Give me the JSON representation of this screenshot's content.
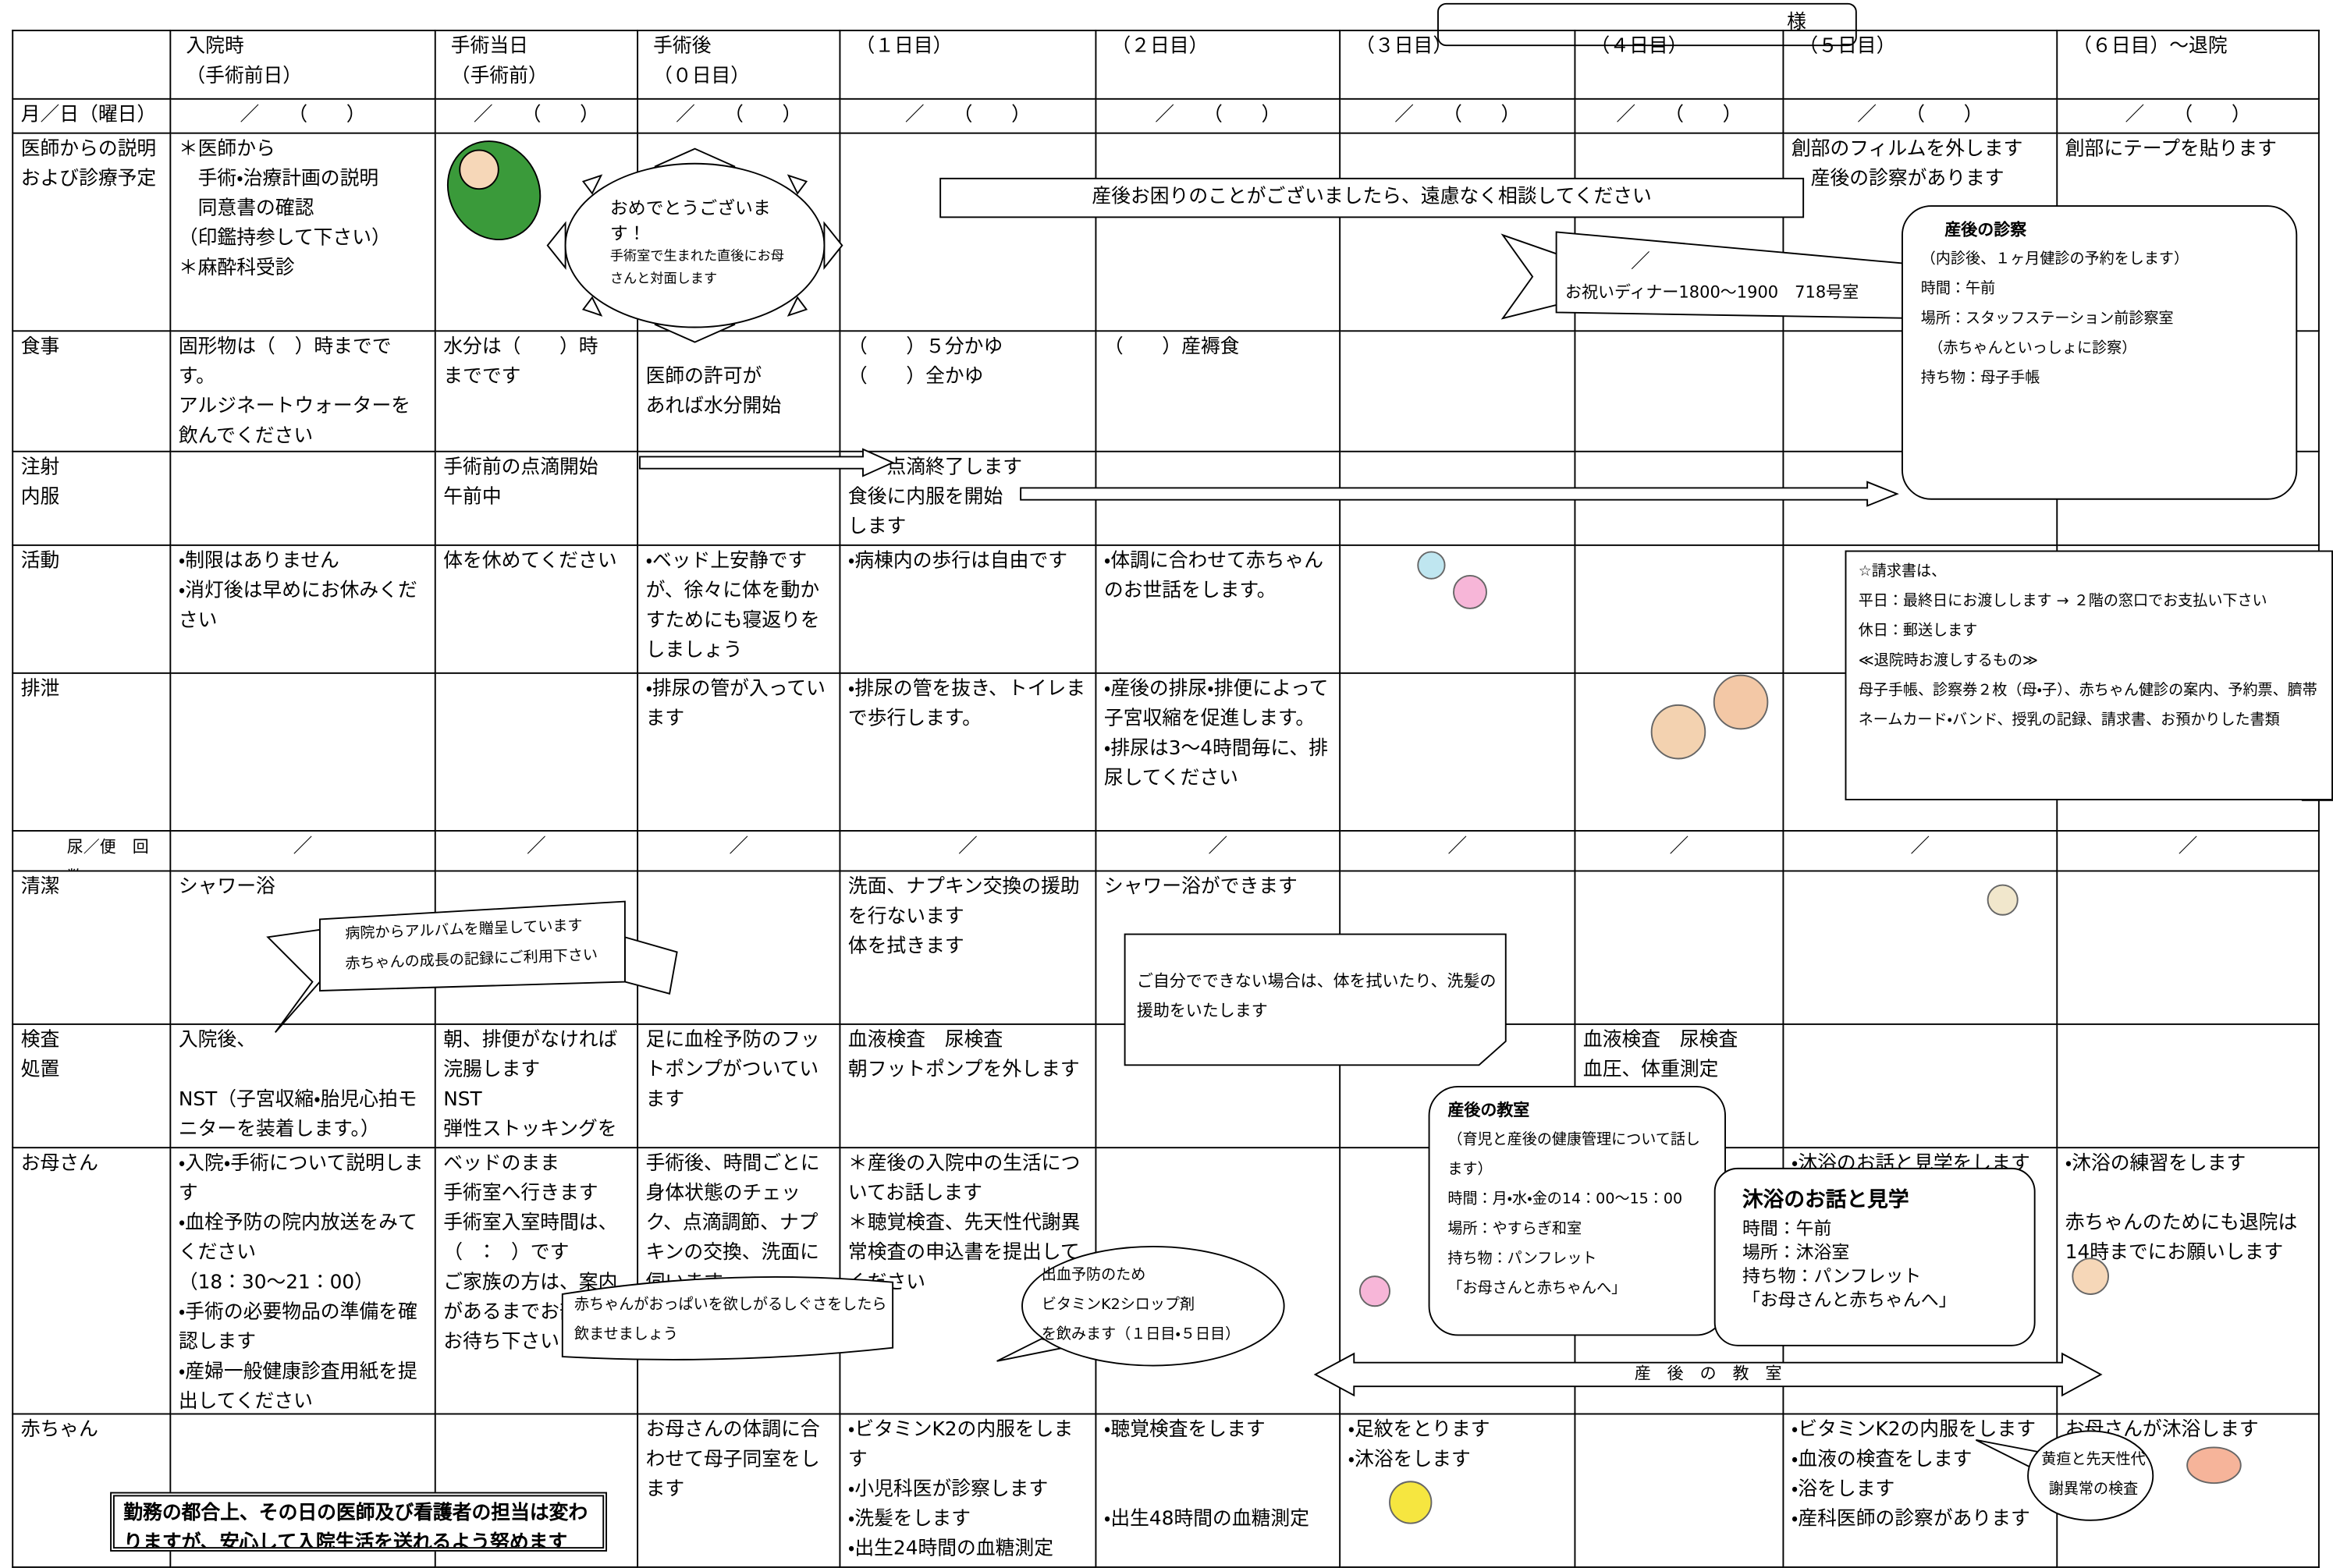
{
  "patient_label": "様",
  "columns": [
    "入院時\n（手術前日）",
    "手術当日\n（手術前）",
    "手術後\n（０日目）",
    "（１日目）",
    "（２日目）",
    "（３日目）",
    "（４日目）",
    "（５日目）",
    "（６日目）～退院"
  ],
  "rows": [
    {
      "label": "月／日（曜日）",
      "cells": [
        "／　　（　　）",
        "／　　（　　）",
        "／　　（　　）",
        "／　　（　　）",
        "／　　（　　）",
        "／　　（　　）",
        "／　　（　　）",
        "／　　（　　）",
        "／　　（　　）"
      ]
    },
    {
      "label": "医師からの説明\nおよび診療予定",
      "cells": [
        "＊医師から\n　手術・治療計画の説明\n　同意書の確認\n（印鑑持参して下さい）\n＊麻酔科受診",
        null,
        null,
        null,
        null,
        null,
        null,
        "創部のフィルムを外します\n　産後の診察があります",
        "創部にテープを貼ります"
      ]
    },
    {
      "label": "食事",
      "cells": [
        "固形物は（　）時までです。\nアルジネートウォーターを飲んでください",
        "水分は（　　）時\nまでです",
        "\n医師の許可が\nあれば水分開始",
        "（　　）５分かゆ\n（　　）全かゆ",
        "（　　）産褥食",
        null,
        null,
        null,
        null
      ]
    },
    {
      "label": "注射\n内服",
      "cells": [
        null,
        "手術前の点滴開始\n午前中",
        null,
        "　　点滴終了します\n食後に内服を開始\nします",
        null,
        null,
        null,
        null,
        null
      ]
    },
    {
      "label": "活動",
      "cells": [
        "・制限はありません\n・消灯後は早めにお休みください",
        "体を休めてください",
        "・ベッド上安静ですが、徐々に体を動かすためにも寝返りをしましょう",
        "・病棟内の歩行は自由です",
        "・体調に合わせて赤ちゃんのお世話をします。",
        null,
        null,
        null,
        null
      ]
    },
    {
      "label": "排泄",
      "cells": [
        null,
        null,
        "・排尿の管が入っています",
        "・排尿の管を抜き、トイレまで歩行します。",
        "・産後の排尿・排便によって子宮収縮を促進します。\n・排尿は3～4時間毎に、排尿してください",
        null,
        null,
        null,
        null
      ]
    },
    {
      "label": "尿／便　回数",
      "cells": [
        "／",
        "／",
        "／",
        "／",
        "／",
        "／",
        "／",
        "／",
        "／"
      ]
    },
    {
      "label": "清潔",
      "cells": [
        "シャワー浴",
        null,
        null,
        "洗面、ナプキン交換の援助を行ないます\n体を拭きます",
        "シャワー浴ができます",
        null,
        null,
        null,
        null
      ]
    },
    {
      "label": "検査\n処置",
      "cells": [
        "入院後、\n\nNST（子宮収縮・胎児心拍モニターを装着します。）",
        "朝、排便がなければ浣腸します\nNST\n弾性ストッキングをはきます",
        "足に血栓予防のフットポンプがついています",
        "血液検査　尿検査\n朝フットポンプを外します",
        null,
        null,
        "血液検査　尿検査\n血圧、体重測定",
        null,
        null
      ]
    },
    {
      "label": "お母さん",
      "cells": [
        "・入院・手術について説明します\n・血栓予防の院内放送をみてください\n（18：30～21：00）\n・手術の必要物品の準備を確認します\n・産婦一般健康診査用紙を提出してください",
        "ベッドのまま\n手術室へ行きます\n手術室入室時間は、\n（　：　）です\nご家族の方は、案内があるまでお部屋でお待ち下さい",
        "手術後、時間ごとに身体状態のチェック、点滴調節、ナプキンの交換、洗面に伺います",
        "＊産後の入院中の生活についてお話します\n＊聴覚検査、先天性代謝異常検査の申込書を提出してください",
        null,
        null,
        null,
        "・沐浴のお話と見学をします",
        "・沐浴の練習をします\n\n赤ちゃんのためにも退院は14時までにお願いします"
      ]
    },
    {
      "label": "赤ちゃん",
      "cells": [
        null,
        null,
        "お母さんの体調に合わせて母子同室をします",
        "・ビタミンK2の内服をします\n・小児科医が診察します\n・洗髪をします\n・出生24時間の血糖測定",
        "・聴覚検査をします\n\n\n・出生48時間の血糖測定",
        "・足紋をとります\n・沐浴をします",
        null,
        "・ビタミンK2の内服をします\n・血液の検査をします\n・浴をします\n・産科医師の診察があります",
        "お母さんが沐浴します"
      ]
    }
  ],
  "callouts": {
    "congrats": {
      "title": "おめでとうございます！",
      "text": "手術室で生まれた直後にお母さんと対面します"
    },
    "banner": "産後お困りのことがございましたら、遠慮なく相談してください",
    "dinner": [
      "／",
      "お祝いディナー1800～1900　718号室"
    ],
    "exam": {
      "title": "産後の診察",
      "lines": [
        "（内診後、１ヶ月健診の予約をします）",
        "時間：午前",
        "場所：スタッフステーション前診察室",
        "　（赤ちゃんといっしょに診察）",
        "持ち物：母子手帳"
      ]
    },
    "bill": [
      "☆請求書は、",
      "平日：最終日にお渡しします → ２階の窓口でお支払い下さい",
      "休日：郵送します",
      "≪退院時お渡しするもの≫",
      "母子手帳、診察券２枚（母・子）、赤ちゃん健診の案内、予約票、臍帯",
      "ネームカード・バンド、授乳の記録、請求書、お預かりした書類"
    ],
    "album": [
      "病院からアルバムを贈呈しています",
      "赤ちゃんの成長の記録にご利用下さい"
    ],
    "self_care": "ご自分でできない場合は、体を拭いたり、洗髪の援助をいたします",
    "class": {
      "title": "産後の教室",
      "lines": [
        "（育児と産後の健康管理について話します）",
        "時間：月・水・金の14：00～15：00",
        "場所：やすらぎ和室",
        "持ち物：パンフレット",
        "「お母さんと赤ちゃんへ」"
      ]
    },
    "bath": {
      "title": "沐浴のお話と見学",
      "lines": [
        "時間：午前",
        "場所：沐浴室",
        "持ち物：パンフレット",
        "「お母さんと赤ちゃんへ」"
      ]
    },
    "breastfeed": "赤ちゃんがおっぱいを欲しがるしぐさをしたら飲ませましょう",
    "vitamin": [
      "出血予防のため",
      "ビタミンK2シロップ剤",
      "を飲みます（１日目・５日目）"
    ],
    "class_arrow": "産　後　の　教　室",
    "jaundice": "黄疸と先天性代謝異常の検査",
    "footer": "勤務の都合上、その日の医師及び看護者の担当は変わりますが、安心して入院生活を送れるよう努めます"
  }
}
